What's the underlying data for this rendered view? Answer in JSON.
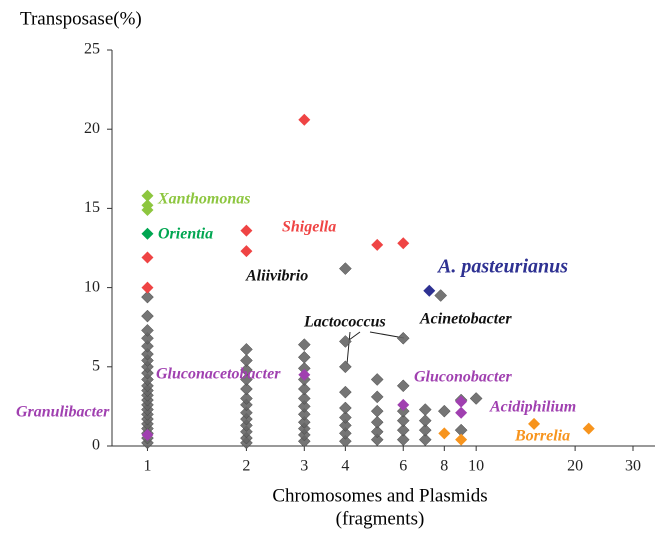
{
  "chart_data": {
    "type": "scatter",
    "xscale": "log",
    "y_label": "Transposase(%)",
    "x_label": [
      "Chromosomes and Plasmids",
      "(fragments)"
    ],
    "xlim": [
      0.78,
      35
    ],
    "ylim": [
      0,
      25
    ],
    "xticks": [
      1,
      2,
      3,
      4,
      6,
      8,
      10,
      20,
      30
    ],
    "yticks": [
      0,
      5,
      10,
      15,
      20,
      25
    ],
    "series": [
      {
        "color": "#666666",
        "x": [
          1,
          1,
          1,
          1,
          1,
          1,
          1,
          1,
          1,
          1,
          1,
          1,
          1,
          1,
          1,
          1,
          1,
          1,
          1,
          1,
          1,
          1,
          1,
          2,
          2,
          2,
          2,
          2,
          2,
          2,
          2,
          2,
          2,
          2,
          2,
          2,
          3,
          3,
          3,
          3,
          3,
          3,
          3,
          3,
          3,
          3,
          3,
          3,
          4,
          4,
          4,
          4,
          4,
          4,
          4,
          4,
          4,
          5,
          5,
          5,
          5,
          5,
          5,
          6,
          6,
          6,
          6,
          6,
          6,
          7,
          7,
          7,
          7,
          7.8,
          8,
          9,
          9,
          10
        ],
        "values": [
          0.2,
          0.5,
          0.8,
          1.1,
          1.4,
          1.7,
          2.0,
          2.3,
          2.6,
          2.9,
          3.2,
          3.5,
          3.8,
          4.2,
          4.6,
          5.0,
          5.4,
          5.8,
          6.3,
          6.8,
          7.3,
          8.2,
          9.4,
          0.2,
          0.5,
          0.9,
          1.3,
          1.7,
          2.1,
          2.6,
          3.0,
          3.6,
          4.2,
          4.8,
          5.4,
          6.1,
          0.3,
          0.7,
          1.1,
          1.5,
          2.0,
          2.5,
          3.0,
          3.6,
          4.2,
          4.9,
          5.6,
          6.4,
          0.3,
          0.8,
          1.3,
          1.8,
          2.4,
          3.4,
          5.0,
          6.6,
          11.2,
          0.4,
          0.9,
          1.5,
          2.2,
          3.1,
          4.2,
          0.4,
          1.0,
          1.6,
          2.2,
          3.8,
          6.8,
          0.4,
          1.0,
          1.6,
          2.3,
          9.5,
          2.2,
          1.0,
          2.9,
          3.0
        ]
      },
      {
        "name": "Xanthomonas",
        "color": "#8dc63f",
        "x": [
          1,
          1,
          1
        ],
        "values": [
          15.8,
          15.2,
          14.9
        ]
      },
      {
        "name": "Orientia",
        "color": "#00a651",
        "x": [
          1
        ],
        "values": [
          13.4
        ]
      },
      {
        "name": "Shigella",
        "color": "#ef4444",
        "x": [
          1,
          1,
          2,
          2,
          3,
          5,
          6
        ],
        "values": [
          11.9,
          10.0,
          13.6,
          12.3,
          20.6,
          12.7,
          12.8
        ]
      },
      {
        "name": "A. pasteurianus",
        "color": "#2e3192",
        "x": [
          7.2
        ],
        "values": [
          9.8
        ]
      },
      {
        "name": "Gluconacetobacter",
        "color": "#a040b0",
        "x": [
          3
        ],
        "values": [
          4.5
        ]
      },
      {
        "name": "Gluconobacter",
        "color": "#a040b0",
        "x": [
          6
        ],
        "values": [
          2.6
        ]
      },
      {
        "name": "Acidiphilium",
        "color": "#a040b0",
        "x": [
          9,
          9
        ],
        "values": [
          2.1,
          2.8
        ]
      },
      {
        "name": "Granulibacter",
        "color": "#a040b0",
        "x": [
          1
        ],
        "values": [
          0.7
        ]
      },
      {
        "name": "Borrelia",
        "color": "#f7941d",
        "x": [
          8,
          9,
          15,
          22
        ],
        "values": [
          0.8,
          0.4,
          1.4,
          1.1
        ]
      }
    ],
    "annotations": [
      "Aliivibrio",
      "Lactococcus",
      "Acinetobacter"
    ]
  }
}
